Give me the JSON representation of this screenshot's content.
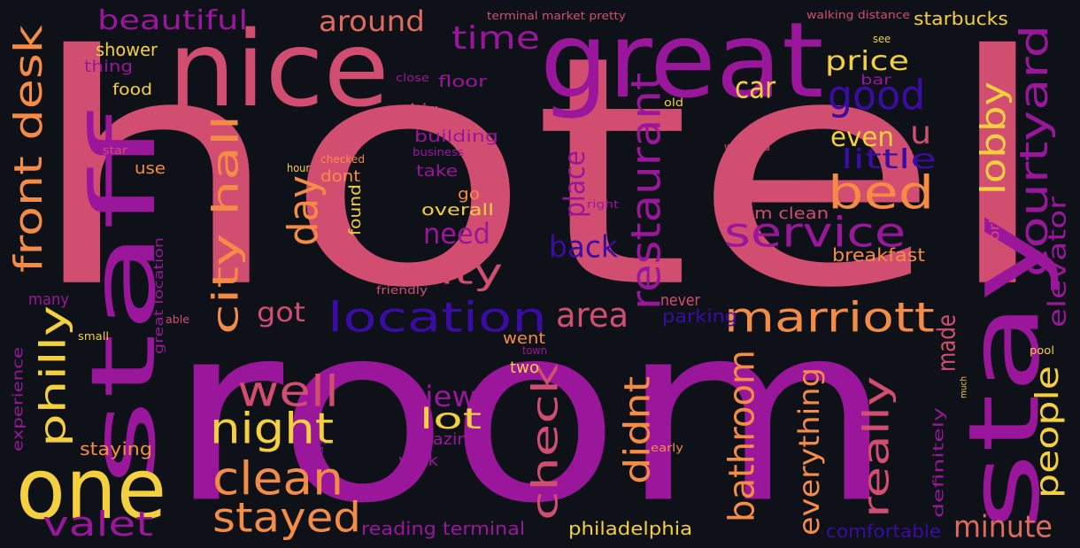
{
  "palette": {
    "background": "#0e1118",
    "pink": "#d24e71",
    "magenta": "#9a179b",
    "orange": "#f58c46",
    "yellow": "#f4d03f",
    "indigo": "#3a0ca3",
    "coral": "#e06a5e"
  },
  "words": [
    {
      "text": "hotel",
      "color": "#d24e71"
    },
    {
      "text": "room",
      "color": "#9a179b"
    },
    {
      "text": "nice",
      "color": "#d24e71"
    },
    {
      "text": "great",
      "color": "#9a179b"
    },
    {
      "text": "stay",
      "color": "#9a179b"
    },
    {
      "text": "staff",
      "color": "#9a179b"
    },
    {
      "text": "one",
      "color": "#f4d03f"
    },
    {
      "text": "front desk",
      "color": "#f58c46"
    },
    {
      "text": "beautiful",
      "color": "#9a179b"
    },
    {
      "text": "around",
      "color": "#e06a5e"
    },
    {
      "text": "time",
      "color": "#9a179b"
    },
    {
      "text": "price",
      "color": "#f4d03f"
    },
    {
      "text": "car",
      "color": "#f4d03f"
    },
    {
      "text": "good",
      "color": "#3a0ca3"
    },
    {
      "text": "u",
      "color": "#d24e71"
    },
    {
      "text": "even",
      "color": "#f4d03f"
    },
    {
      "text": "little",
      "color": "#3a0ca3"
    },
    {
      "text": "bed",
      "color": "#f58c46"
    },
    {
      "text": "service",
      "color": "#9a179b"
    },
    {
      "text": "courtyard",
      "color": "#9a179b"
    },
    {
      "text": "lobby",
      "color": "#f4d03f"
    },
    {
      "text": "restaurant",
      "color": "#9a179b"
    },
    {
      "text": "city hall",
      "color": "#f58c46"
    },
    {
      "text": "day",
      "color": "#f58c46"
    },
    {
      "text": "city",
      "color": "#d24e71"
    },
    {
      "text": "location",
      "color": "#3a0ca3"
    },
    {
      "text": "marriott",
      "color": "#f58c46"
    },
    {
      "text": "area",
      "color": "#d24e71"
    },
    {
      "text": "back",
      "color": "#3a0ca3"
    },
    {
      "text": "need",
      "color": "#9a179b"
    },
    {
      "text": "place",
      "color": "#9a179b"
    },
    {
      "text": "well",
      "color": "#d24e71"
    },
    {
      "text": "night",
      "color": "#f4d03f"
    },
    {
      "text": "clean",
      "color": "#f58c46"
    },
    {
      "text": "stayed",
      "color": "#f58c46"
    },
    {
      "text": "valet",
      "color": "#9a179b"
    },
    {
      "text": "philly",
      "color": "#f4d03f"
    },
    {
      "text": "got",
      "color": "#d24e71"
    },
    {
      "text": "view",
      "color": "#9a179b"
    },
    {
      "text": "lot",
      "color": "#f4d03f"
    },
    {
      "text": "check",
      "color": "#d24e71"
    },
    {
      "text": "didnt",
      "color": "#f58c46"
    },
    {
      "text": "bathroom",
      "color": "#f58c46"
    },
    {
      "text": "everything",
      "color": "#f58c46"
    },
    {
      "text": "really",
      "color": "#d24e71"
    },
    {
      "text": "people",
      "color": "#f4d03f"
    },
    {
      "text": "minute",
      "color": "#e06a5e"
    },
    {
      "text": "elevator",
      "color": "#9a179b"
    },
    {
      "text": "made",
      "color": "#d24e71"
    },
    {
      "text": "room clean",
      "color": "#d24e71"
    },
    {
      "text": "breakfast",
      "color": "#f58c46"
    },
    {
      "text": "starbucks",
      "color": "#f4d03f"
    },
    {
      "text": "shower",
      "color": "#f4d03f"
    },
    {
      "text": "thing",
      "color": "#9a179b"
    },
    {
      "text": "food",
      "color": "#f4d03f"
    },
    {
      "text": "floor",
      "color": "#9a179b"
    },
    {
      "text": "big",
      "color": "#d24e71"
    },
    {
      "text": "building",
      "color": "#9a179b"
    },
    {
      "text": "use",
      "color": "#f58c46"
    },
    {
      "text": "take",
      "color": "#9a179b"
    },
    {
      "text": "go",
      "color": "#f58c46"
    },
    {
      "text": "overall",
      "color": "#f4d03f"
    },
    {
      "text": "dont",
      "color": "#f58c46"
    },
    {
      "text": "found",
      "color": "#f4d03f"
    },
    {
      "text": "many",
      "color": "#9a179b"
    },
    {
      "text": "never",
      "color": "#d24e71"
    },
    {
      "text": "parking",
      "color": "#3a0ca3"
    },
    {
      "text": "went",
      "color": "#f58c46"
    },
    {
      "text": "two",
      "color": "#f4d03f"
    },
    {
      "text": "amazing",
      "color": "#9a179b"
    },
    {
      "text": "walk",
      "color": "#9a179b"
    },
    {
      "text": "staying",
      "color": "#f58c46"
    },
    {
      "text": "experience",
      "color": "#9a179b"
    },
    {
      "text": "great location",
      "color": "#9a179b"
    },
    {
      "text": "reading terminal",
      "color": "#9a179b"
    },
    {
      "text": "philadelphia",
      "color": "#f4d03f"
    },
    {
      "text": "comfortable",
      "color": "#3a0ca3"
    },
    {
      "text": "definitely",
      "color": "#9a179b"
    },
    {
      "text": "work",
      "color": "#d24e71"
    },
    {
      "text": "terminal market pretty",
      "color": "#d24e71"
    },
    {
      "text": "walking distance",
      "color": "#d24e71"
    },
    {
      "text": "see",
      "color": "#f4d03f"
    },
    {
      "text": "bar",
      "color": "#9a179b"
    },
    {
      "text": "old",
      "color": "#f4d03f"
    },
    {
      "text": "close",
      "color": "#9a179b"
    },
    {
      "text": "weekend",
      "color": "#d24e71"
    },
    {
      "text": "star",
      "color": "#d24e71"
    },
    {
      "text": "hour",
      "color": "#f4d03f"
    },
    {
      "text": "checked",
      "color": "#f58c46"
    },
    {
      "text": "business",
      "color": "#9a179b"
    },
    {
      "text": "right",
      "color": "#9a179b"
    },
    {
      "text": "friendly",
      "color": "#d24e71"
    },
    {
      "text": "able",
      "color": "#d24e71"
    },
    {
      "text": "small",
      "color": "#f4d03f"
    },
    {
      "text": "town",
      "color": "#9a179b"
    },
    {
      "text": "way",
      "color": "#9a179b"
    },
    {
      "text": "early",
      "color": "#f58c46"
    },
    {
      "text": "much",
      "color": "#f4d03f"
    },
    {
      "text": "pool",
      "color": "#f4d03f"
    }
  ]
}
